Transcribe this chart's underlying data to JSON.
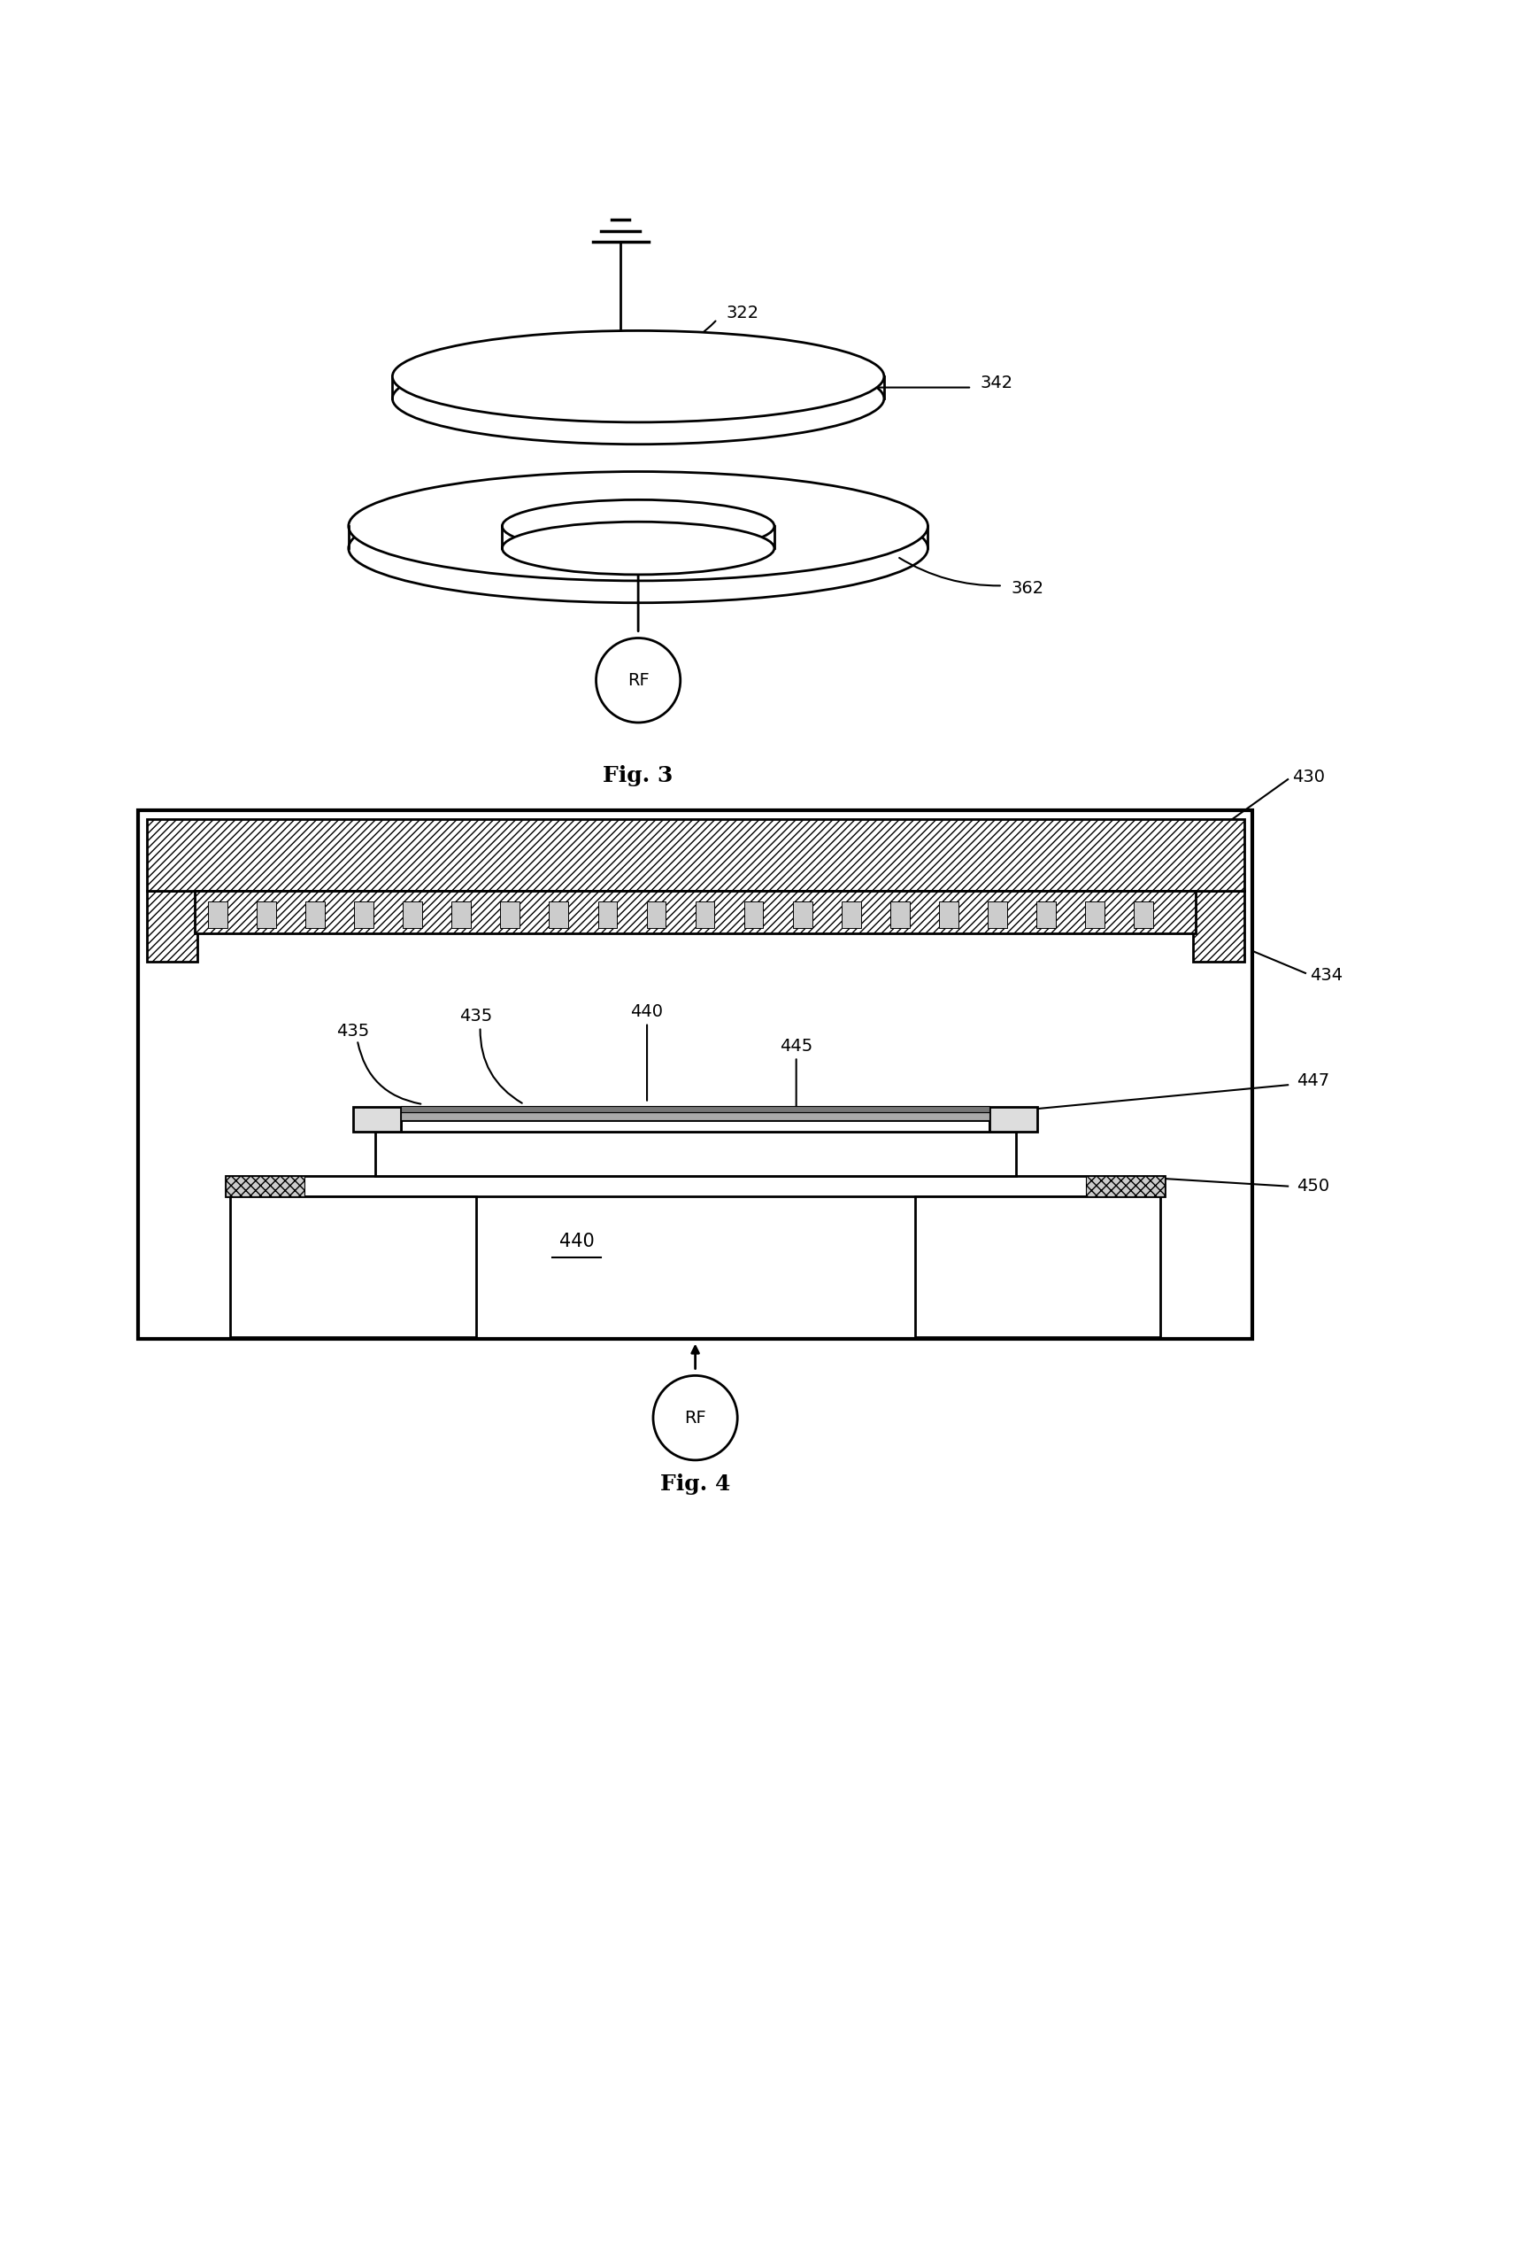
{
  "fig3_label": "Fig. 3",
  "fig4_label": "Fig. 4",
  "label_322": "322",
  "label_342": "342",
  "label_362": "362",
  "label_430": "430",
  "label_434": "434",
  "label_435": "435",
  "label_440": "440",
  "label_445": "445",
  "label_447": "447",
  "label_450": "450",
  "label_rf": "RF",
  "bg_color": "#ffffff",
  "line_color": "#000000"
}
